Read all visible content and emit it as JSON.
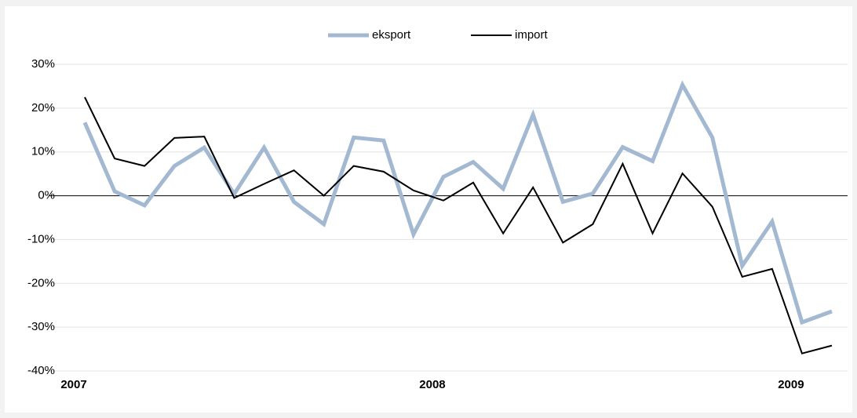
{
  "chart_data": {
    "type": "line",
    "categories": [
      "2007",
      null,
      null,
      null,
      null,
      null,
      null,
      null,
      null,
      null,
      null,
      null,
      "2008",
      null,
      null,
      null,
      null,
      null,
      null,
      null,
      null,
      null,
      null,
      null,
      "2009",
      null
    ],
    "series": [
      {
        "name": "eksport",
        "color": "#a3b8d1",
        "values": [
          16.7,
          1,
          -2.2,
          6.8,
          11,
          0.4,
          11,
          -1.4,
          -6.5,
          13.3,
          12.6,
          -8.8,
          4.3,
          7.7,
          1.6,
          18.5,
          -1.4,
          0.5,
          11.1,
          7.9,
          25.3,
          13.3,
          -16,
          -5.9,
          -28.9,
          -26.4
        ]
      },
      {
        "name": "import",
        "color": "#000000",
        "values": [
          22.5,
          8.5,
          6.8,
          13.2,
          13.5,
          -0.5,
          2.7,
          5.8,
          0,
          6.8,
          5.5,
          1.2,
          -1.1,
          3,
          -8.6,
          1.9,
          -10.7,
          -6.5,
          7.3,
          -8.6,
          5.1,
          -2.5,
          -18.5,
          -16.7,
          -36,
          -34.2
        ]
      }
    ],
    "ylim": [
      -40,
      30
    ],
    "yticks": [
      {
        "value": -40,
        "label": "-40%"
      },
      {
        "value": -30,
        "label": "-30%"
      },
      {
        "value": -20,
        "label": "-20%"
      },
      {
        "value": -10,
        "label": "-10%"
      },
      {
        "value": 0,
        "label": "0%"
      },
      {
        "value": 10,
        "label": "10%"
      },
      {
        "value": 20,
        "label": "20%"
      },
      {
        "value": 30,
        "label": "30%"
      }
    ],
    "grid": true,
    "legend": "top"
  }
}
